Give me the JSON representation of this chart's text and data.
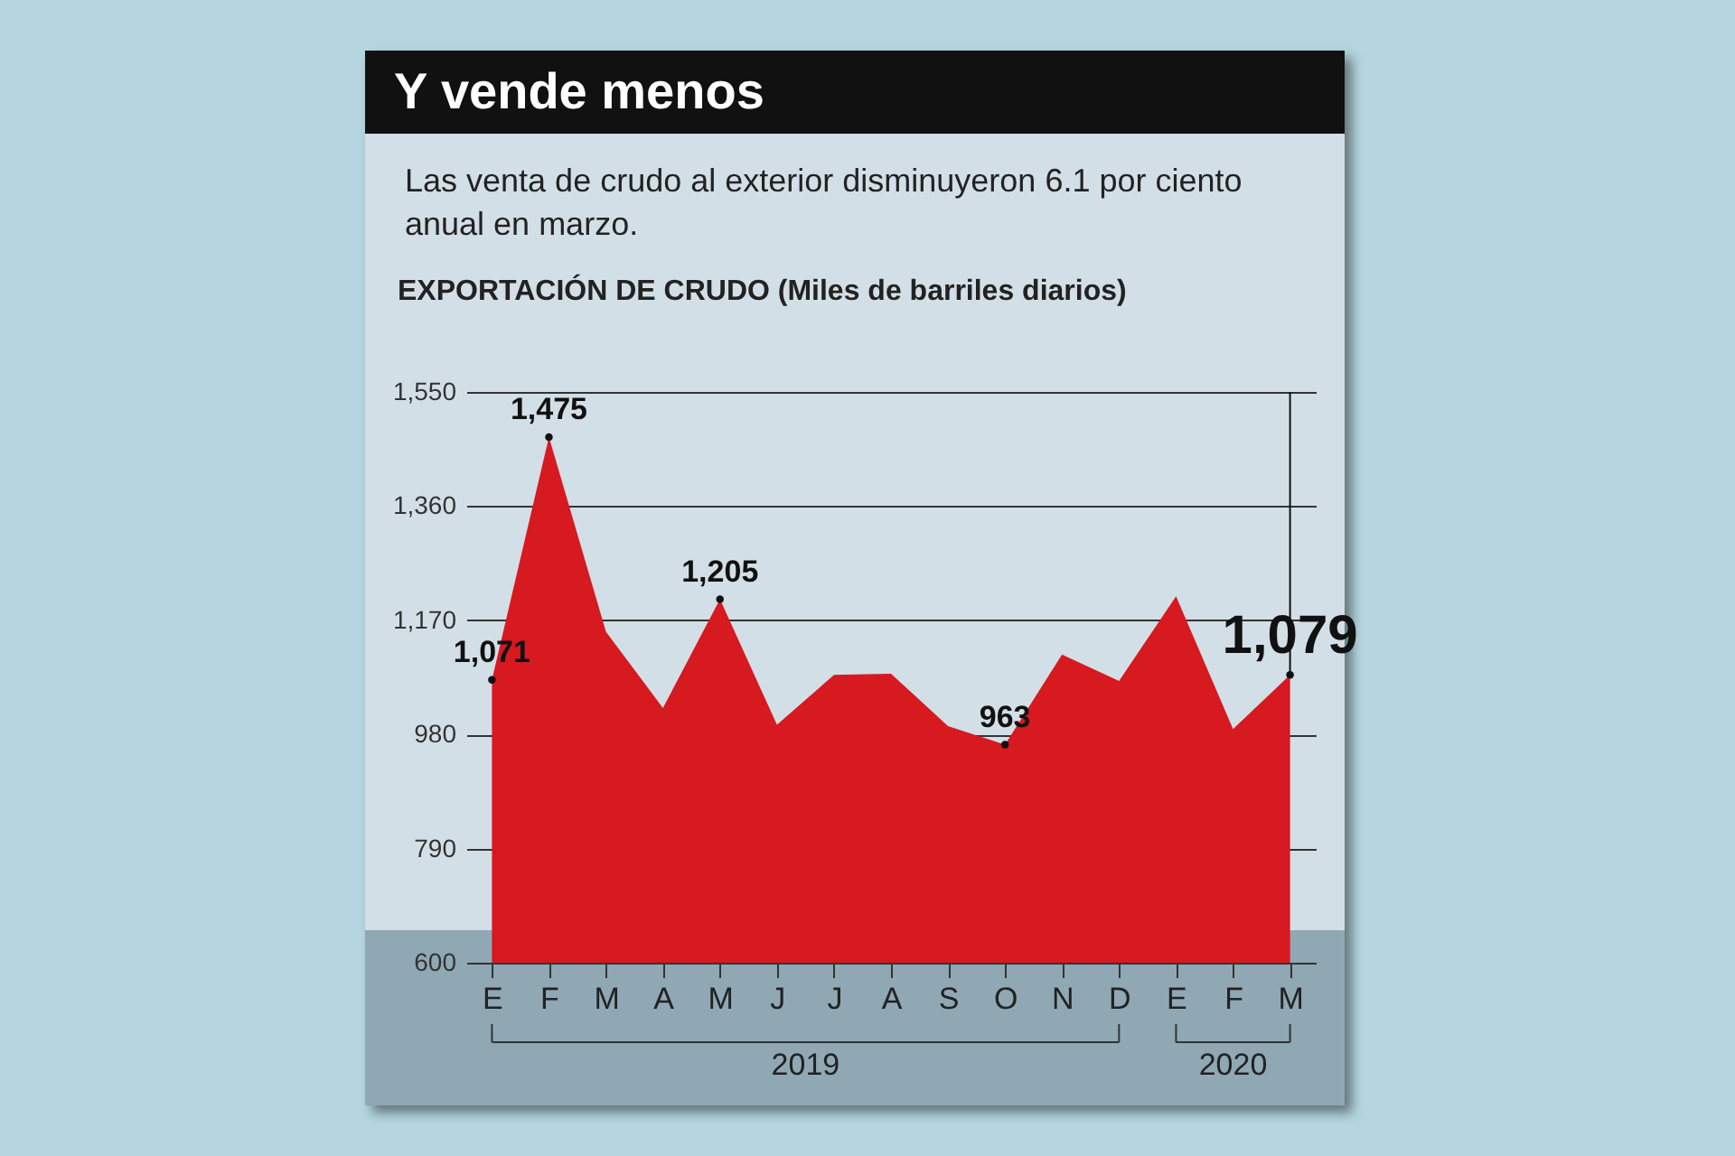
{
  "chart_data": {
    "type": "area",
    "title": "Y vende menos",
    "subtitle": "Las venta de crudo al exterior disminuyeron 6.1 por ciento anual en marzo.",
    "ylabel": "EXPORTACIÓN DE CRUDO (Miles de barriles diarios)",
    "categories": [
      "E",
      "F",
      "M",
      "A",
      "M",
      "J",
      "J",
      "A",
      "S",
      "O",
      "N",
      "D",
      "E",
      "F",
      "M"
    ],
    "series": [
      {
        "color": "#d71920",
        "values": [
          1071,
          1475,
          1151,
          1024,
          1205,
          996,
          1079,
          1081,
          994,
          963,
          1113,
          1069,
          1210,
          989,
          1079
        ],
        "value_labels": [
          "1,071",
          "1,475",
          null,
          null,
          "1,205",
          null,
          null,
          null,
          null,
          "963",
          null,
          null,
          null,
          null,
          "1,079"
        ]
      }
    ],
    "ylim": [
      600,
      1550
    ],
    "yticks": [
      600,
      790,
      980,
      {
        "value": 1170,
        "label": "1,170"
      },
      {
        "value": 1360,
        "label": "1,360"
      },
      {
        "value": 1550,
        "label": "1,550"
      }
    ],
    "grid": "y",
    "annotations": [
      "2019",
      "2020"
    ]
  }
}
